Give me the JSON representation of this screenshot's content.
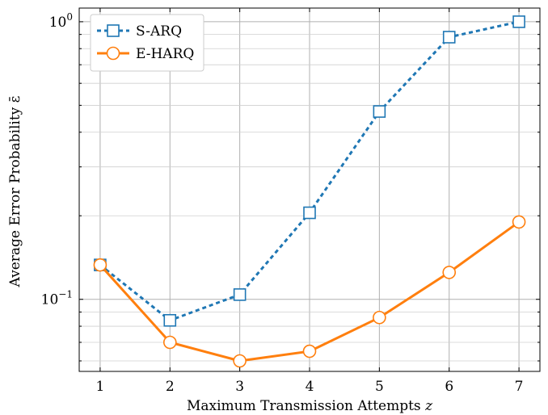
{
  "chart_data": {
    "type": "line",
    "x": [
      1,
      2,
      3,
      4,
      5,
      6,
      7
    ],
    "xlabel": "Maximum Transmission Attempts z",
    "ylabel": "Average Error Probability ε̄",
    "yscale": "log",
    "xlim": [
      0.7,
      7.3
    ],
    "ylim": [
      0.055,
      1.12
    ],
    "grid": true,
    "legend_position": "top-left",
    "xticks": [
      "1",
      "2",
      "3",
      "4",
      "5",
      "6",
      "7"
    ],
    "yticks": [
      {
        "value": 0.1,
        "base": "10",
        "exp": "−1"
      },
      {
        "value": 1,
        "base": "10",
        "exp": "0"
      }
    ],
    "series": [
      {
        "name": "S-ARQ",
        "color": "#1f77b4",
        "style": "dashed",
        "marker": "square",
        "values": [
          0.133,
          0.084,
          0.104,
          0.205,
          0.475,
          0.88,
          1.0
        ]
      },
      {
        "name": "E-HARQ",
        "color": "#ff7f0e",
        "style": "solid",
        "marker": "circle",
        "values": [
          0.133,
          0.07,
          0.06,
          0.065,
          0.086,
          0.125,
          0.19
        ]
      }
    ]
  }
}
